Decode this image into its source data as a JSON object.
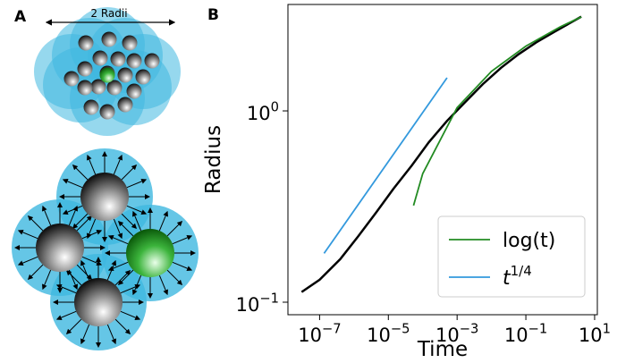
{
  "panel_labels": [
    "A",
    "B"
  ],
  "illustration": {
    "label": "2 Radii"
  },
  "chart_data": {
    "type": "line",
    "xscale": "log",
    "yscale": "log",
    "xlabel": "Time",
    "ylabel": "Radius",
    "xlim": [
      1.2e-08,
      12
    ],
    "ylim": [
      0.086,
      3.6
    ],
    "xticks": [
      {
        "value": 1e-07,
        "label": "10",
        "exponent": "−7"
      },
      {
        "value": 1e-05,
        "label": "10",
        "exponent": "−5"
      },
      {
        "value": 0.001,
        "label": "10",
        "exponent": "−3"
      },
      {
        "value": 0.1,
        "label": "10",
        "exponent": "−1"
      },
      {
        "value": 10,
        "label": "10",
        "exponent": "1"
      }
    ],
    "yticks": [
      {
        "value": 0.1,
        "label": "10",
        "exponent": "−1"
      },
      {
        "value": 1,
        "label": "10",
        "exponent": "0"
      }
    ],
    "legend": "lower right",
    "series": [
      {
        "color": "#000000",
        "x": [
          3e-08,
          1e-07,
          4e-07,
          1.3e-06,
          4.4e-06,
          1.4e-05,
          4.8e-05,
          0.00015,
          0.00051,
          0.0017,
          0.0056,
          0.019,
          0.062,
          0.2,
          0.68,
          2.2,
          4.1
        ],
        "values": [
          0.113,
          0.131,
          0.168,
          0.22,
          0.294,
          0.391,
          0.518,
          0.685,
          0.887,
          1.11,
          1.38,
          1.68,
          1.98,
          2.28,
          2.59,
          2.92,
          3.11
        ]
      },
      {
        "name": "log(t)",
        "color": "#228b22",
        "x": [
          5.4e-05,
          0.0001,
          0.001,
          0.01,
          0.1,
          1,
          4.1
        ],
        "values": [
          0.32,
          0.47,
          1.04,
          1.61,
          2.18,
          2.75,
          3.1
        ]
      },
      {
        "name": "t",
        "name_superscript": "1/4",
        "color": "#3399dd",
        "x": [
          1.35e-07,
          0.00051
        ],
        "values": [
          0.18,
          1.49
        ]
      }
    ]
  }
}
